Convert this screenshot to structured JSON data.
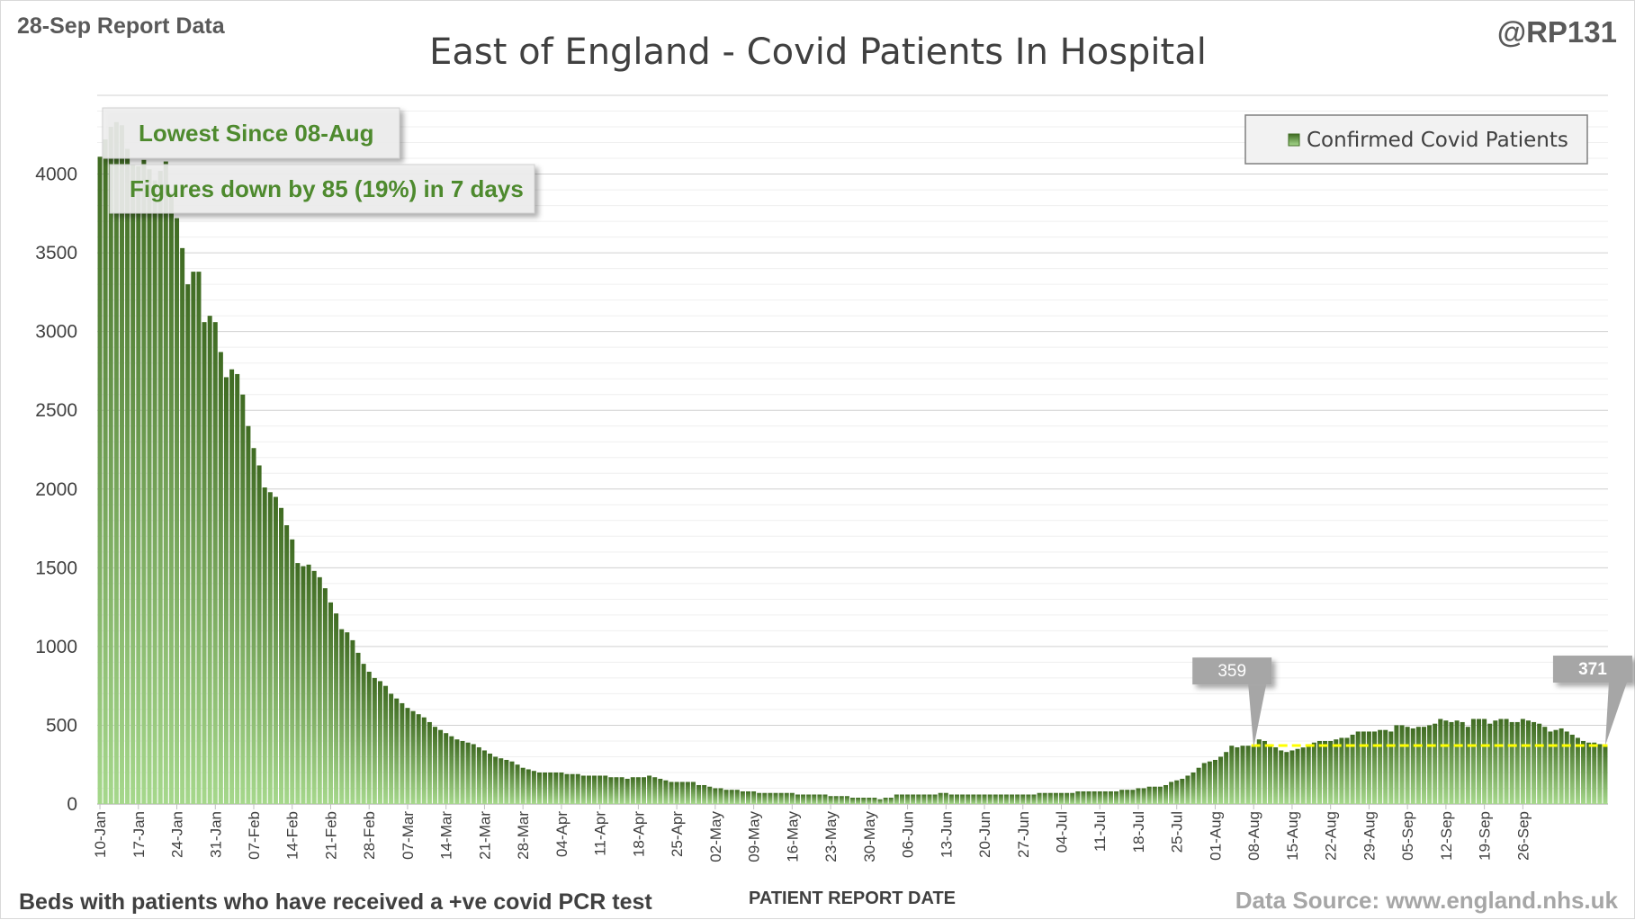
{
  "header": {
    "report_label": "28-Sep Report Data",
    "handle": "@RP131"
  },
  "footer": {
    "left_note": "Beds with patients who have received a +ve covid PCR test",
    "source": "Data Source: www.england.nhs.uk"
  },
  "annotations": {
    "lowest": "Lowest Since 08-Aug",
    "change": "Figures down by 85 (19%) in 7 days"
  },
  "callouts": [
    {
      "label": "359",
      "date": "08-Aug",
      "value": 359
    },
    {
      "label": "371",
      "date": "28-Sep",
      "value": 371
    }
  ],
  "colors": {
    "bar_top": "#3f6b22",
    "bar_bottom": "#a6d88c",
    "reference_line": "#ffff00",
    "callout_box": "#a6a6a6",
    "annotation_text": "#4e8a2e"
  },
  "chart_data": {
    "type": "bar",
    "title": "East of England - Covid Patients In Hospital",
    "xlabel": "PATIENT REPORT DATE",
    "ylabel": "",
    "ylim": [
      0,
      4500
    ],
    "yticks": [
      0,
      500,
      1000,
      1500,
      2000,
      2500,
      3000,
      3500,
      4000
    ],
    "grid": true,
    "legend_position": "top-right",
    "x_start": "10-Jan",
    "x_end": "28-Sep",
    "tick_labels": [
      "10-Jan",
      "17-Jan",
      "24-Jan",
      "31-Jan",
      "07-Feb",
      "14-Feb",
      "21-Feb",
      "28-Feb",
      "07-Mar",
      "14-Mar",
      "21-Mar",
      "28-Mar",
      "04-Apr",
      "11-Apr",
      "18-Apr",
      "25-Apr",
      "02-May",
      "09-May",
      "16-May",
      "23-May",
      "30-May",
      "06-Jun",
      "13-Jun",
      "20-Jun",
      "27-Jun",
      "04-Jul",
      "11-Jul",
      "18-Jul",
      "25-Jul",
      "01-Aug",
      "08-Aug",
      "15-Aug",
      "22-Aug",
      "29-Aug",
      "05-Sep",
      "12-Sep",
      "19-Sep",
      "26-Sep"
    ],
    "reference_line_value": 371,
    "reference_line_from": "08-Aug",
    "series": [
      {
        "name": "Confirmed Covid Patients",
        "values": [
          4110,
          4220,
          4300,
          4330,
          4310,
          4160,
          4060,
          4050,
          4090,
          4030,
          3960,
          4020,
          4080,
          3880,
          3720,
          3530,
          3300,
          3380,
          3380,
          3060,
          3100,
          3060,
          2870,
          2710,
          2760,
          2730,
          2600,
          2400,
          2260,
          2150,
          2010,
          1980,
          1950,
          1880,
          1770,
          1680,
          1530,
          1510,
          1520,
          1480,
          1440,
          1370,
          1280,
          1210,
          1110,
          1090,
          1040,
          960,
          890,
          840,
          800,
          780,
          750,
          700,
          670,
          640,
          610,
          590,
          570,
          550,
          520,
          490,
          470,
          450,
          430,
          410,
          400,
          390,
          380,
          360,
          340,
          320,
          300,
          290,
          280,
          270,
          250,
          230,
          220,
          210,
          200,
          200,
          200,
          200,
          200,
          190,
          190,
          190,
          180,
          180,
          180,
          180,
          180,
          170,
          170,
          170,
          160,
          170,
          170,
          170,
          180,
          170,
          160,
          150,
          140,
          140,
          140,
          140,
          140,
          120,
          120,
          110,
          100,
          100,
          90,
          90,
          90,
          80,
          80,
          80,
          70,
          70,
          70,
          70,
          70,
          70,
          70,
          60,
          60,
          60,
          60,
          60,
          60,
          50,
          50,
          50,
          50,
          40,
          40,
          40,
          40,
          40,
          30,
          40,
          40,
          60,
          60,
          60,
          60,
          60,
          60,
          60,
          60,
          70,
          70,
          60,
          60,
          60,
          60,
          60,
          60,
          60,
          60,
          60,
          60,
          60,
          60,
          60,
          60,
          60,
          60,
          70,
          70,
          70,
          70,
          70,
          70,
          70,
          80,
          80,
          80,
          80,
          80,
          80,
          80,
          80,
          90,
          90,
          90,
          100,
          100,
          110,
          110,
          110,
          120,
          140,
          150,
          160,
          180,
          200,
          230,
          260,
          270,
          280,
          300,
          330,
          370,
          360,
          370,
          370,
          370,
          410,
          400,
          380,
          360,
          340,
          330,
          340,
          350,
          359,
          380,
          390,
          400,
          400,
          400,
          410,
          420,
          420,
          440,
          460,
          460,
          460,
          460,
          470,
          470,
          460,
          500,
          500,
          490,
          480,
          490,
          490,
          500,
          510,
          540,
          530,
          520,
          530,
          520,
          490,
          540,
          540,
          540,
          510,
          530,
          540,
          540,
          520,
          520,
          540,
          530,
          520,
          510,
          490,
          460,
          470,
          480,
          460,
          440,
          420,
          400,
          390,
          390,
          380,
          371
        ]
      }
    ]
  }
}
